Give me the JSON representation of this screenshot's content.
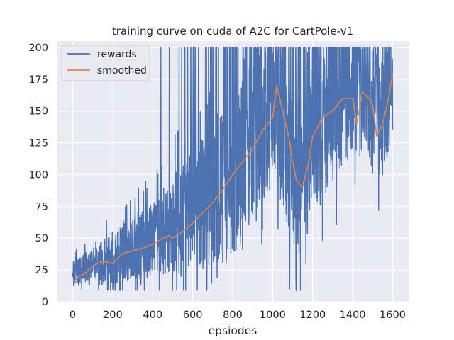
{
  "chart_data": {
    "type": "line",
    "title": "training curve on cuda of A2C for CartPole-v1",
    "xlabel": "epsiodes",
    "ylabel": "",
    "xlim": [
      -80,
      1680
    ],
    "ylim": [
      0,
      205
    ],
    "xticks": [
      0,
      200,
      400,
      600,
      800,
      1000,
      1200,
      1400,
      1600
    ],
    "yticks": [
      0,
      25,
      50,
      75,
      100,
      125,
      150,
      175,
      200
    ],
    "grid": true,
    "legend_position": "top-left",
    "series": [
      {
        "name": "rewards",
        "color": "#4c72b0",
        "trend": [
          [
            0,
            22
          ],
          [
            100,
            27
          ],
          [
            200,
            34
          ],
          [
            300,
            42
          ],
          [
            400,
            50
          ],
          [
            500,
            60
          ],
          [
            600,
            70
          ],
          [
            700,
            83
          ],
          [
            800,
            97
          ],
          [
            900,
            125
          ],
          [
            1000,
            150
          ],
          [
            1050,
            135
          ],
          [
            1100,
            100
          ],
          [
            1150,
            95
          ],
          [
            1200,
            125
          ],
          [
            1300,
            150
          ],
          [
            1350,
            160
          ],
          [
            1400,
            158
          ],
          [
            1450,
            165
          ],
          [
            1500,
            150
          ],
          [
            1550,
            145
          ],
          [
            1600,
            170
          ]
        ],
        "spread": [
          [
            0,
            10
          ],
          [
            200,
            20
          ],
          [
            400,
            30
          ],
          [
            600,
            48
          ],
          [
            800,
            62
          ],
          [
            900,
            66
          ],
          [
            1000,
            58
          ],
          [
            1200,
            60
          ],
          [
            1400,
            52
          ],
          [
            1600,
            45
          ]
        ]
      },
      {
        "name": "smoothed",
        "color": "#dd8452",
        "x": [
          0,
          30,
          60,
          100,
          150,
          200,
          250,
          300,
          350,
          400,
          450,
          480,
          500,
          550,
          600,
          650,
          700,
          750,
          800,
          850,
          900,
          950,
          1000,
          1020,
          1050,
          1080,
          1100,
          1120,
          1150,
          1180,
          1200,
          1250,
          1300,
          1350,
          1400,
          1420,
          1450,
          1480,
          1500,
          1520,
          1550,
          1580,
          1600
        ],
        "y": [
          15,
          20,
          22,
          28,
          32,
          30,
          38,
          40,
          42,
          45,
          50,
          52,
          50,
          55,
          62,
          70,
          78,
          88,
          100,
          110,
          120,
          135,
          145,
          170,
          150,
          130,
          110,
          95,
          90,
          110,
          130,
          145,
          150,
          160,
          160,
          140,
          165,
          160,
          155,
          130,
          140,
          160,
          180
        ]
      }
    ]
  }
}
